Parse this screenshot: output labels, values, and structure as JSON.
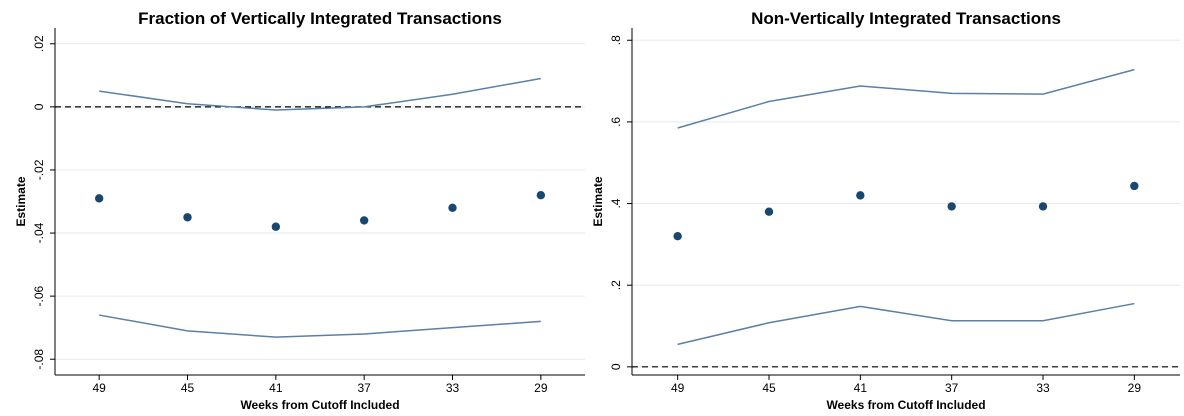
{
  "chart_data": [
    {
      "type": "scatter-band",
      "title": "Fraction of Vertically Integrated Transactions",
      "ylabel": "Estimate",
      "xlabel": "Weeks from Cutoff Included",
      "categories": [
        "49",
        "45",
        "41",
        "37",
        "33",
        "29"
      ],
      "values": [
        -0.029,
        -0.035,
        -0.038,
        -0.036,
        -0.032,
        -0.028
      ],
      "upper": [
        0.005,
        0.001,
        -0.001,
        0,
        0.004,
        0.009
      ],
      "lower": [
        -0.066,
        -0.071,
        -0.073,
        -0.072,
        -0.07,
        -0.068
      ],
      "color": "#1a476f",
      "band_color": "#5b7fa6",
      "hline": 0,
      "ylim": [
        -0.085,
        0.025
      ],
      "yticks": [
        {
          "value": 0.02,
          "label": ".02"
        },
        0,
        {
          "value": -0.02,
          "label": "-.02"
        },
        {
          "value": -0.04,
          "label": "-.04"
        },
        {
          "value": -0.06,
          "label": "-.06"
        },
        {
          "value": -0.08,
          "label": "-.08"
        }
      ],
      "grid": true
    },
    {
      "type": "scatter-band",
      "title": "Non-Vertically Integrated Transactions",
      "ylabel": "Estimate",
      "xlabel": "Weeks from Cutoff Included",
      "categories": [
        "49",
        "45",
        "41",
        "37",
        "33",
        "29"
      ],
      "values": [
        0.32,
        0.38,
        0.42,
        0.393,
        0.393,
        0.443
      ],
      "upper": [
        0.585,
        0.65,
        0.688,
        0.67,
        0.668,
        0.728
      ],
      "lower": [
        0.055,
        0.108,
        0.148,
        0.113,
        0.113,
        0.155
      ],
      "color": "#1a476f",
      "band_color": "#5b7fa6",
      "hline": 0,
      "ylim": [
        -0.02,
        0.83
      ],
      "yticks": [
        0,
        {
          "value": 0.2,
          "label": ".2"
        },
        {
          "value": 0.4,
          "label": ".4"
        },
        {
          "value": 0.6,
          "label": ".6"
        },
        {
          "value": 0.8,
          "label": ".8"
        }
      ],
      "grid": true
    }
  ]
}
